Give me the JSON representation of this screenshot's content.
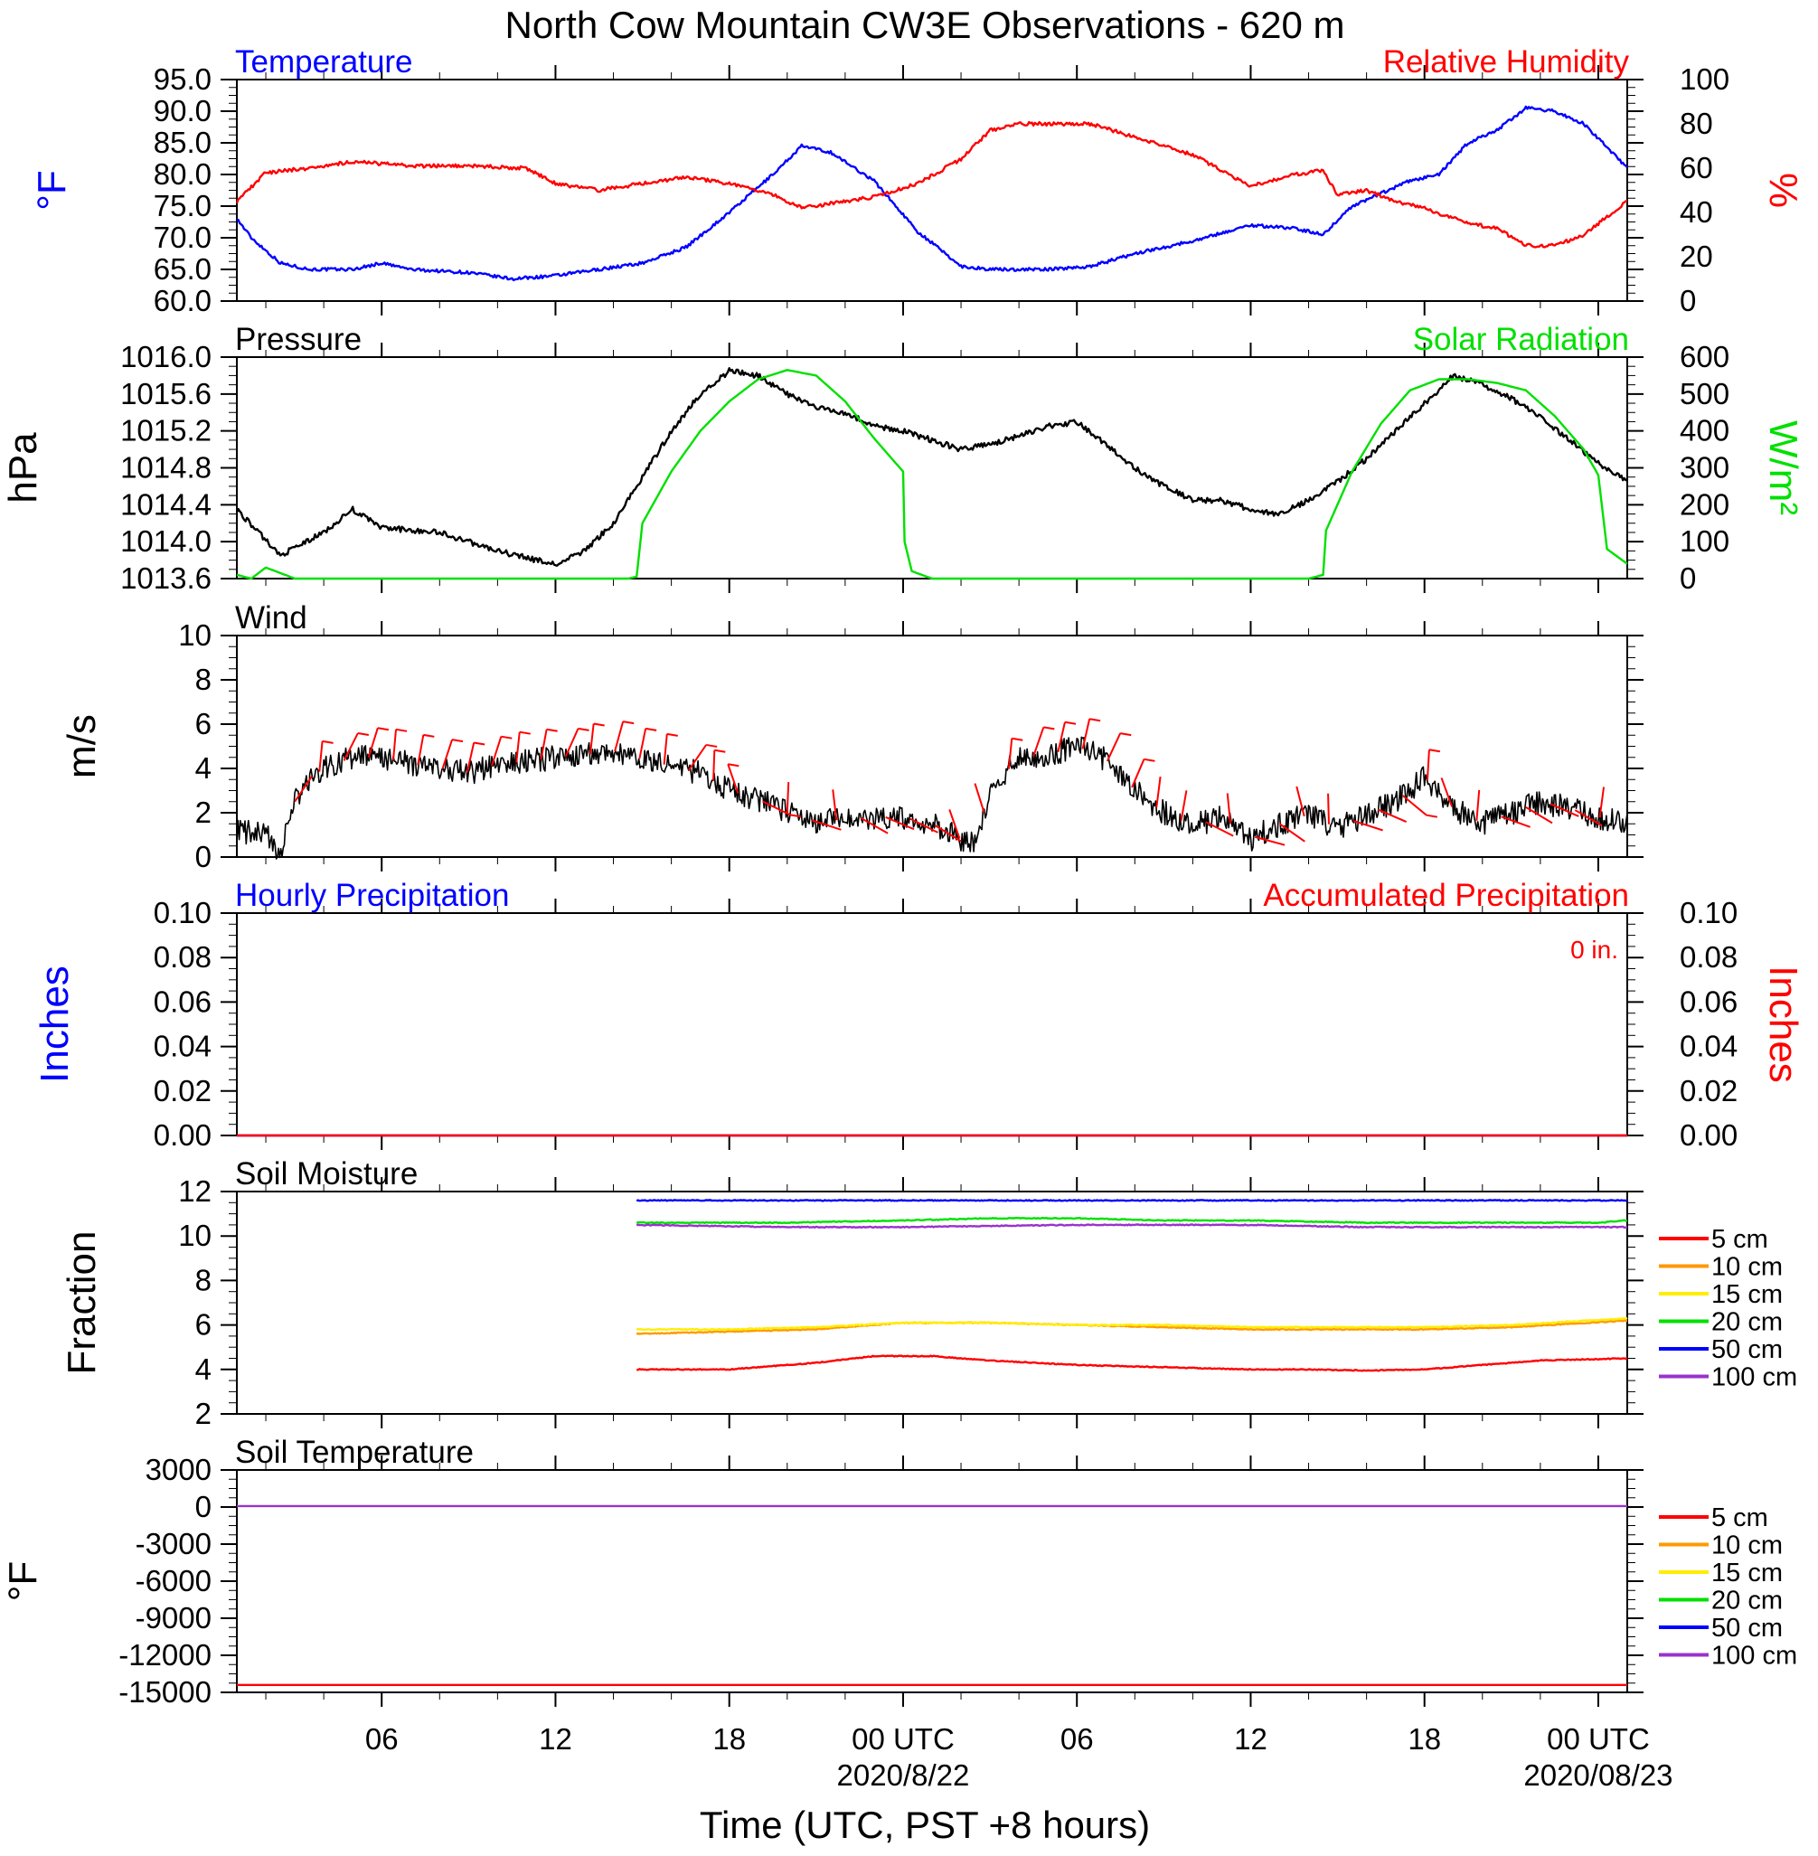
{
  "title": "North Cow Mountain CW3E Observations - 620 m",
  "x_axis": {
    "label": "Time (UTC, PST +8 hours)",
    "ticks": [
      "06",
      "12",
      "18",
      "00 UTC",
      "06",
      "12",
      "18",
      "00 UTC"
    ],
    "tick_hours": [
      6,
      12,
      18,
      24,
      30,
      36,
      42,
      48
    ],
    "dates": [
      "2020/8/22",
      "2020/08/23"
    ],
    "range_hours": [
      1,
      49
    ]
  },
  "colors": {
    "temperature": "#0000ff",
    "humidity": "#ff0000",
    "pressure": "#000000",
    "solar": "#00e000",
    "wind": "#000000",
    "barbs": "#ff0000",
    "hourly_precip": "#0000ff",
    "accum_precip": "#ff0000"
  },
  "legend": {
    "labels": [
      "5 cm",
      "10 cm",
      "15 cm",
      "20 cm",
      "50 cm",
      "100 cm"
    ],
    "colors": [
      "#ff0000",
      "#ff9900",
      "#ffee00",
      "#00e000",
      "#0000ff",
      "#9933cc"
    ]
  },
  "panels": {
    "temp_rh": {
      "left_title": "Temperature",
      "right_title": "Relative Humidity",
      "left_unit": "°F",
      "right_unit": "%",
      "left_ticks": [
        "95.0",
        "90.0",
        "85.0",
        "80.0",
        "75.0",
        "70.0",
        "65.0",
        "60.0"
      ],
      "right_ticks": [
        "100",
        "80",
        "60",
        "40",
        "20",
        "0"
      ]
    },
    "pressure_solar": {
      "left_title": "Pressure",
      "right_title": "Solar Radiation",
      "left_unit": "hPa",
      "right_unit": "W/m²",
      "left_ticks": [
        "1016.0",
        "1015.6",
        "1015.2",
        "1014.8",
        "1014.4",
        "1014.0",
        "1013.6"
      ],
      "right_ticks": [
        "600",
        "500",
        "400",
        "300",
        "200",
        "100",
        "0"
      ]
    },
    "wind": {
      "left_title": "Wind",
      "left_unit": "m/s",
      "left_ticks": [
        "10",
        "8",
        "6",
        "4",
        "2",
        "0"
      ]
    },
    "precip": {
      "left_title": "Hourly Precipitation",
      "right_title": "Accumulated Precipitation",
      "annotation": "0 in.",
      "left_unit": "Inches",
      "right_unit": "Inches",
      "left_ticks": [
        "0.10",
        "0.08",
        "0.06",
        "0.04",
        "0.02",
        "0.00"
      ],
      "right_ticks": [
        "0.10",
        "0.08",
        "0.06",
        "0.04",
        "0.02",
        "0.00"
      ]
    },
    "soil_moisture": {
      "left_title": "Soil Moisture",
      "left_unit": "Fraction",
      "left_ticks": [
        "12",
        "10",
        "8",
        "6",
        "4",
        "2"
      ]
    },
    "soil_temp": {
      "left_title": "Soil Temperature",
      "left_unit": "°F",
      "left_ticks": [
        "3000",
        "0",
        "-3000",
        "-6000",
        "-9000",
        "-12000",
        "-15000"
      ]
    }
  },
  "chart_data": [
    {
      "type": "line",
      "title": "Temperature",
      "ylabel": "°F",
      "ylim": [
        60,
        95
      ],
      "x_unit": "hours since 2020/8/21 00 UTC",
      "series": [
        {
          "name": "Temperature",
          "axis": "left",
          "color": "#0000ff",
          "x": [
            1,
            1.5,
            2.5,
            3.5,
            5,
            6,
            7,
            9,
            10.5,
            12,
            13.5,
            15,
            16.5,
            18,
            19.5,
            20.5,
            21.5,
            23,
            24.5,
            26,
            27,
            29,
            30.5,
            32,
            34,
            36,
            37.5,
            38.5,
            39.5,
            40.5,
            41.5,
            42.5,
            43.5,
            44.5,
            45.5,
            46.5,
            47.5,
            49
          ],
          "y": [
            73,
            70,
            66,
            65,
            65,
            66,
            65,
            64.5,
            63.5,
            64,
            65,
            66,
            68.5,
            74,
            80,
            84.5,
            83.5,
            79,
            71,
            65.5,
            65,
            65,
            65.5,
            67.5,
            69.5,
            72,
            71.5,
            70.5,
            75,
            77,
            79,
            80,
            85,
            87,
            90.5,
            90,
            88,
            81
          ]
        },
        {
          "name": "Relative Humidity",
          "axis": "right",
          "color": "#ff0000",
          "x": [
            1,
            2,
            3.5,
            5,
            6,
            7,
            9,
            11,
            12,
            13.5,
            15,
            16.5,
            18,
            19.5,
            20.5,
            22,
            23,
            24.5,
            26,
            27,
            28,
            29,
            30.5,
            32,
            34,
            36,
            37.5,
            38.5,
            39,
            40,
            41,
            42,
            43.5,
            44.5,
            45.5,
            46.5,
            47.5,
            49
          ],
          "y": [
            45,
            58,
            60,
            63,
            62,
            61,
            61,
            60,
            53,
            50,
            53,
            56,
            53,
            48,
            42,
            45,
            47,
            53,
            64,
            77,
            80,
            80,
            80,
            74,
            66,
            52,
            57,
            59,
            48,
            50,
            45,
            42,
            35,
            33,
            25,
            25,
            30,
            45
          ]
        }
      ],
      "right_ylabel": "%",
      "right_ylim": [
        0,
        100
      ]
    },
    {
      "type": "line",
      "title": "Pressure",
      "ylabel": "hPa",
      "ylim": [
        1013.6,
        1016.0
      ],
      "series": [
        {
          "name": "Pressure",
          "axis": "left",
          "color": "#000000",
          "x": [
            1,
            2.5,
            4,
            5,
            6,
            8,
            10,
            12,
            13,
            14,
            15,
            16,
            17,
            18,
            19,
            20,
            21,
            22,
            23,
            24,
            25,
            26,
            27,
            28,
            29,
            30,
            31,
            32,
            33,
            34,
            35,
            36,
            37,
            38,
            39,
            40,
            41,
            42,
            43,
            44,
            45,
            46,
            47,
            48,
            49
          ],
          "y": [
            1014.35,
            1013.85,
            1014.1,
            1014.35,
            1014.15,
            1014.1,
            1013.9,
            1013.75,
            1013.9,
            1014.2,
            1014.7,
            1015.2,
            1015.6,
            1015.85,
            1015.8,
            1015.6,
            1015.45,
            1015.4,
            1015.25,
            1015.2,
            1015.1,
            1015.0,
            1015.05,
            1015.15,
            1015.25,
            1015.3,
            1015.05,
            1014.8,
            1014.6,
            1014.45,
            1014.45,
            1014.35,
            1014.3,
            1014.45,
            1014.65,
            1014.9,
            1015.2,
            1015.5,
            1015.8,
            1015.7,
            1015.55,
            1015.35,
            1015.1,
            1014.85,
            1014.65
          ]
        },
        {
          "name": "Solar Radiation",
          "axis": "right",
          "color": "#00e000",
          "x": [
            1,
            1.5,
            2,
            3,
            14.5,
            14.8,
            15.0,
            16,
            17,
            18,
            19,
            20,
            21,
            22,
            23,
            24,
            24.05,
            24.3,
            25,
            26,
            38,
            38.5,
            38.6,
            39.5,
            40.5,
            41.5,
            42.5,
            43.5,
            44.5,
            45.5,
            46.5,
            47.5,
            48.0,
            48.3,
            49
          ],
          "y": [
            10,
            0,
            30,
            0,
            0,
            5,
            150,
            290,
            400,
            480,
            540,
            565,
            550,
            480,
            380,
            290,
            100,
            20,
            0,
            0,
            0,
            10,
            130,
            290,
            420,
            510,
            540,
            540,
            530,
            510,
            440,
            350,
            280,
            80,
            40
          ]
        }
      ],
      "right_ylabel": "W/m²",
      "right_ylim": [
        0,
        600
      ]
    },
    {
      "type": "line",
      "title": "Wind",
      "ylabel": "m/s",
      "ylim": [
        0,
        10
      ],
      "series": [
        {
          "name": "Wind",
          "color": "#000000",
          "x": [
            1,
            2,
            2.5,
            3,
            3.5,
            4,
            5,
            6,
            7,
            8,
            9,
            10,
            11,
            12,
            13,
            14,
            15,
            16,
            17,
            18,
            19,
            20,
            21,
            22,
            23,
            24,
            25,
            26,
            26.5,
            27,
            28,
            29,
            30,
            31,
            32,
            33,
            34,
            35,
            36,
            37,
            38,
            39,
            40,
            41,
            42,
            43,
            44,
            45,
            46,
            47,
            48,
            49
          ],
          "y": [
            1.2,
            1.0,
            0.2,
            2.5,
            3.5,
            4.0,
            4.5,
            4.5,
            4.2,
            4.0,
            3.8,
            4.2,
            4.3,
            4.5,
            4.6,
            4.8,
            4.4,
            4.1,
            3.8,
            3.0,
            2.6,
            2.0,
            1.6,
            1.7,
            1.8,
            1.8,
            1.5,
            0.8,
            0.5,
            3.0,
            4.5,
            4.6,
            5.0,
            4.4,
            3.0,
            2.0,
            1.4,
            1.8,
            0.8,
            1.5,
            1.9,
            1.3,
            1.9,
            2.5,
            3.6,
            2.2,
            1.5,
            2.0,
            2.5,
            2.2,
            1.8,
            1.5
          ]
        }
      ]
    },
    {
      "type": "line",
      "title": "Hourly Precipitation",
      "ylabel": "Inches",
      "ylim": [
        0,
        0.1
      ],
      "series": [
        {
          "name": "Hourly Precipitation",
          "color": "#0000ff",
          "x": [
            1,
            49
          ],
          "y": [
            0,
            0
          ]
        },
        {
          "name": "Accumulated Precipitation",
          "color": "#ff0000",
          "x": [
            1,
            49
          ],
          "y": [
            0,
            0
          ]
        }
      ]
    },
    {
      "type": "line",
      "title": "Soil Moisture",
      "ylabel": "Fraction",
      "ylim": [
        2,
        12
      ],
      "series": [
        {
          "name": "5 cm",
          "color": "#ff0000",
          "x": [
            14.8,
            18,
            21,
            23,
            25,
            27,
            30,
            33,
            36,
            38,
            40,
            42,
            44,
            46,
            49
          ],
          "y": [
            4.0,
            4.0,
            4.3,
            4.6,
            4.6,
            4.4,
            4.2,
            4.1,
            4.0,
            4.0,
            3.95,
            4.0,
            4.2,
            4.4,
            4.5
          ]
        },
        {
          "name": "10 cm",
          "color": "#ff9900",
          "x": [
            14.8,
            18,
            21,
            24,
            27,
            30,
            33,
            36,
            39,
            42,
            45,
            49
          ],
          "y": [
            5.6,
            5.7,
            5.8,
            6.1,
            6.1,
            6.0,
            5.9,
            5.8,
            5.8,
            5.8,
            5.9,
            6.2
          ]
        },
        {
          "name": "15 cm",
          "color": "#ffee00",
          "x": [
            14.8,
            18,
            21,
            24,
            27,
            30,
            33,
            36,
            39,
            42,
            45,
            49
          ],
          "y": [
            5.8,
            5.8,
            5.9,
            6.1,
            6.1,
            6.0,
            6.0,
            5.9,
            5.9,
            5.9,
            6.0,
            6.3
          ]
        },
        {
          "name": "20 cm",
          "color": "#00e000",
          "x": [
            14.8,
            20,
            24,
            27,
            30,
            33,
            36,
            40,
            44,
            48,
            49
          ],
          "y": [
            10.6,
            10.6,
            10.7,
            10.8,
            10.8,
            10.7,
            10.7,
            10.6,
            10.6,
            10.6,
            10.7
          ]
        },
        {
          "name": "50 cm",
          "color": "#0000ff",
          "x": [
            14.8,
            49
          ],
          "y": [
            11.6,
            11.6
          ]
        },
        {
          "name": "100 cm",
          "color": "#9933cc",
          "x": [
            14.8,
            20,
            24,
            30,
            36,
            40,
            44,
            49
          ],
          "y": [
            10.5,
            10.4,
            10.4,
            10.5,
            10.5,
            10.4,
            10.4,
            10.4
          ]
        }
      ]
    },
    {
      "type": "line",
      "title": "Soil Temperature",
      "ylabel": "°F",
      "ylim": [
        -15000,
        3000
      ],
      "series": [
        {
          "name": "5 cm",
          "color": "#ff0000",
          "x": [
            1,
            49
          ],
          "y": [
            -14400,
            -14400
          ]
        },
        {
          "name": "100 cm",
          "color": "#9933cc",
          "x": [
            1,
            49
          ],
          "y": [
            80,
            80
          ]
        }
      ]
    }
  ]
}
